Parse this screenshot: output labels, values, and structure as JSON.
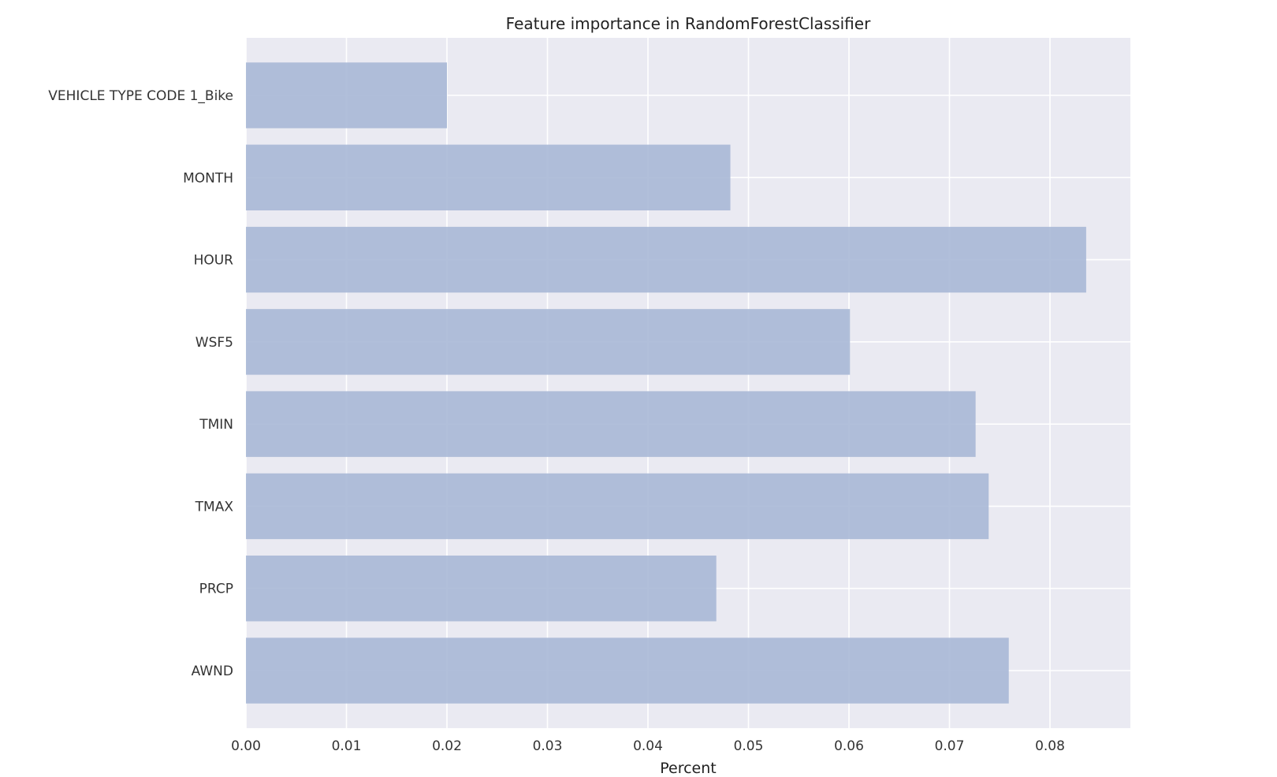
{
  "chart_data": {
    "type": "bar",
    "orientation": "horizontal",
    "title": "Feature importance in RandomForestClassifier",
    "xlabel": "Percent",
    "ylabel": "",
    "categories": [
      "VEHICLE TYPE CODE 1_Bike",
      "MONTH",
      "HOUR",
      "WSF5",
      "TMIN",
      "TMAX",
      "PRCP",
      "AWND"
    ],
    "values": [
      0.02,
      0.0482,
      0.0836,
      0.0601,
      0.0726,
      0.0739,
      0.0468,
      0.0759
    ],
    "xlim": [
      0.0,
      0.088
    ],
    "xticks": [
      0.0,
      0.01,
      0.02,
      0.03,
      0.04,
      0.05,
      0.06,
      0.07,
      0.08
    ],
    "xtick_labels": [
      "0.00",
      "0.01",
      "0.02",
      "0.03",
      "0.04",
      "0.05",
      "0.06",
      "0.07",
      "0.08"
    ],
    "grid": true,
    "colors": {
      "bar": "#a9b8d6",
      "plot_background": "#eaeaf2",
      "grid": "#ffffff"
    }
  }
}
